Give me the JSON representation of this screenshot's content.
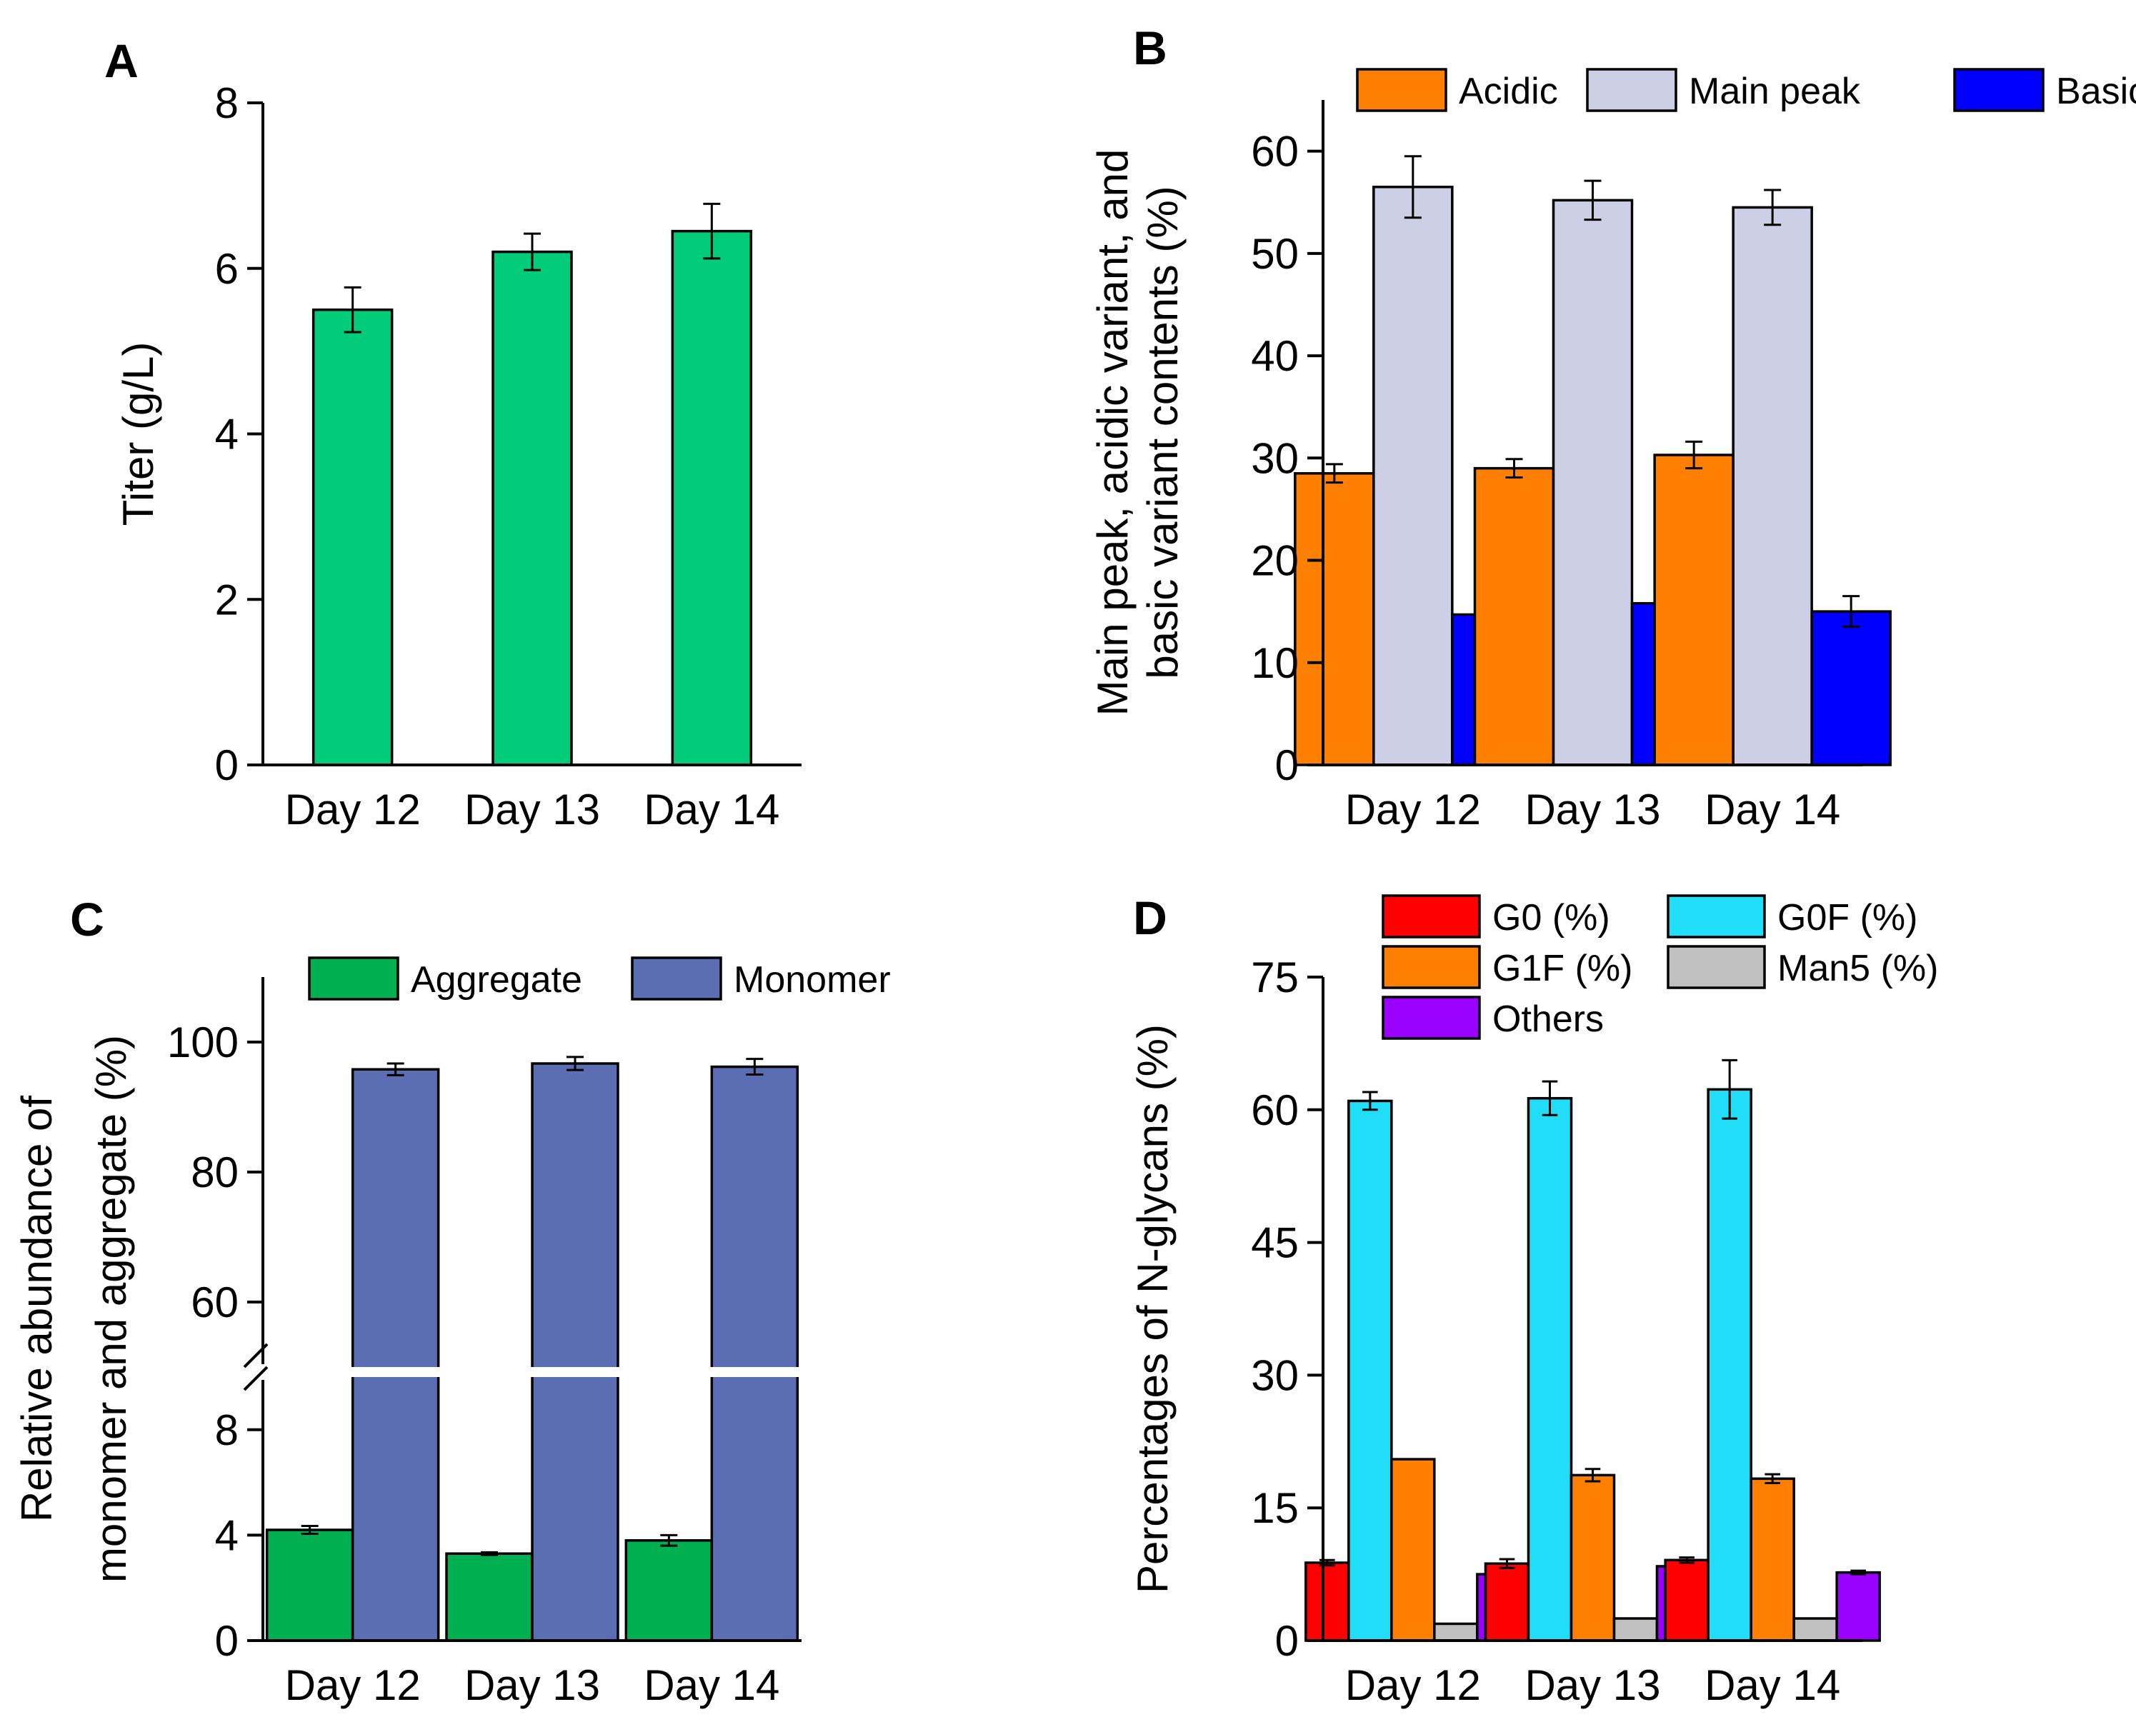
{
  "chart_data": [
    {
      "panel": "A",
      "type": "bar",
      "categories": [
        "Day 12",
        "Day 13",
        "Day 14"
      ],
      "series": [
        {
          "name": "Titer",
          "color": "#00cc7a",
          "values": [
            5.5,
            6.2,
            6.45
          ],
          "errors": [
            0.27,
            0.22,
            0.33
          ]
        }
      ],
      "ylabel": "Titer (g/L)",
      "ylim": [
        0,
        8
      ],
      "yticks": [
        0,
        2,
        4,
        6,
        8
      ],
      "legend": false
    },
    {
      "panel": "B",
      "type": "bar",
      "categories": [
        "Day 12",
        "Day 13",
        "Day 14"
      ],
      "series": [
        {
          "name": "Acidic",
          "color": "#ff7f00",
          "values": [
            28.5,
            29.0,
            30.3
          ],
          "errors": [
            0.9,
            0.9,
            1.3
          ]
        },
        {
          "name": "Main peak",
          "color": "#cccfe6",
          "values": [
            56.5,
            55.2,
            54.5
          ],
          "errors": [
            3.0,
            1.9,
            1.7
          ]
        },
        {
          "name": "Basic",
          "color": "#0000ff",
          "values": [
            14.7,
            15.8,
            15.0
          ],
          "errors": [
            0.9,
            1.1,
            1.5
          ]
        }
      ],
      "ylabel": [
        "Main peak, acidic variant, and",
        "basic variant contents (%)"
      ],
      "ylim": [
        0,
        65
      ],
      "yticks": [
        0,
        10,
        20,
        30,
        40,
        50,
        60
      ],
      "legend": "top"
    },
    {
      "panel": "C",
      "type": "bar",
      "categories": [
        "Day 12",
        "Day 13",
        "Day 14"
      ],
      "series": [
        {
          "name": "Aggregate",
          "color": "#00b050",
          "values": [
            4.2,
            3.3,
            3.8
          ],
          "errors": [
            0.15,
            0.05,
            0.2
          ]
        },
        {
          "name": "Monomer",
          "color": "#5b6eb4",
          "values": [
            95.8,
            96.7,
            96.2
          ],
          "errors": [
            0.9,
            1.0,
            1.2
          ]
        }
      ],
      "ylabel": [
        "Relative abundance of",
        "monomer and aggregate (%)"
      ],
      "axis_break": {
        "lower_range": [
          0,
          10
        ],
        "upper_range": [
          50,
          110
        ]
      },
      "yticks": [
        0,
        4,
        8,
        60,
        80,
        100
      ],
      "legend": "top"
    },
    {
      "panel": "D",
      "type": "bar",
      "categories": [
        "Day 12",
        "Day 13",
        "Day 14"
      ],
      "series": [
        {
          "name": "G0 (%)",
          "color": "#ff0000",
          "values": [
            8.8,
            8.7,
            9.1
          ],
          "errors": [
            0.3,
            0.5,
            0.3
          ]
        },
        {
          "name": "G0F (%)",
          "color": "#22ddf7",
          "values": [
            61.0,
            61.3,
            62.3
          ],
          "errors": [
            1.0,
            1.9,
            3.3
          ]
        },
        {
          "name": "G1F (%)",
          "color": "#ff7f00",
          "values": [
            20.5,
            18.7,
            18.3
          ],
          "errors": [
            0.0,
            0.7,
            0.5
          ]
        },
        {
          "name": "Man5 (%)",
          "color": "#c0c0c0",
          "values": [
            1.9,
            2.5,
            2.5
          ],
          "errors": [
            0.0,
            0.0,
            0.0
          ]
        },
        {
          "name": "Others",
          "color": "#9900ff",
          "values": [
            7.5,
            8.4,
            7.7
          ],
          "errors": [
            0.5,
            0.4,
            0.2
          ]
        }
      ],
      "ylabel": "Percentages of N-glycans (%)",
      "ylim": [
        0,
        75
      ],
      "yticks": [
        0,
        15,
        30,
        45,
        60,
        75
      ],
      "legend": "top"
    }
  ]
}
